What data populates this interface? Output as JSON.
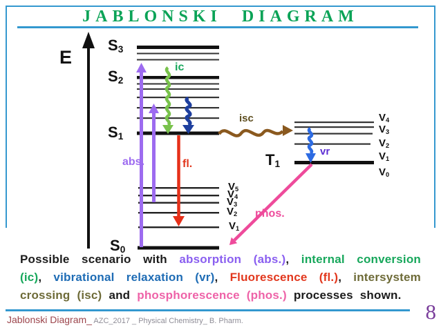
{
  "title": "JABLONSKI DIAGRAM",
  "colors": {
    "frame_blue": "#3398cf",
    "title_green": "#0ba357",
    "absorption_purple": "#9d6bf0",
    "ic_green_arrow": "#79c24c",
    "ic_green_label": "#17a75b",
    "vr_navy_arrow": "#1e3f9e",
    "vr_blue_arrow": "#2d6be2",
    "vr_label_violet": "#5e2fd4",
    "fluorescence_red": "#e63019",
    "isc_brown_arrow": "#8a591f",
    "isc_label_olive": "#5e4e20",
    "phosphorescence_pink": "#ee4b9b",
    "caption_blue": "#1e6cb5",
    "caption_olive": "#6e6b38",
    "footer_maroon": "#9c454c",
    "footer_gray": "#8e8c96",
    "page_number_purple": "#7a3e9b"
  },
  "diagram": {
    "energy_label": "E",
    "levels": {
      "s3": {
        "base": "S",
        "sub": "3"
      },
      "s2": {
        "base": "S",
        "sub": "2"
      },
      "s1": {
        "base": "S",
        "sub": "1"
      },
      "s0": {
        "base": "S",
        "sub": "0"
      },
      "t1": {
        "base": "T",
        "sub": "1"
      }
    },
    "vib_left": [
      {
        "base": "V",
        "sub": "5"
      },
      {
        "base": "V",
        "sub": "4"
      },
      {
        "base": "V",
        "sub": "3"
      },
      {
        "base": "V",
        "sub": "2"
      },
      {
        "base": "V",
        "sub": "1"
      }
    ],
    "vib_right": [
      {
        "base": "V",
        "sub": "4"
      },
      {
        "base": "V",
        "sub": "3"
      },
      {
        "base": "V",
        "sub": "2"
      },
      {
        "base": "V",
        "sub": "1"
      },
      {
        "base": "V",
        "sub": "0"
      }
    ],
    "arrow_labels": {
      "ic": "ic",
      "isc": "isc",
      "vr": "vr",
      "abs": "abs.",
      "fl": "fl.",
      "phos": "phos."
    }
  },
  "caption": {
    "lines": [
      {
        "justify": true,
        "tokens": [
          [
            {
              "t": "Possible",
              "c": "black"
            }
          ],
          [
            {
              "t": "scenario",
              "c": "black"
            }
          ],
          [
            {
              "t": "with",
              "c": "black"
            }
          ],
          [
            {
              "t": "absorption",
              "c": "purple"
            }
          ],
          [
            {
              "t": "(abs.)",
              "c": "purple"
            },
            {
              "t": ",",
              "c": "black"
            }
          ],
          [
            {
              "t": "internal",
              "c": "green"
            }
          ],
          [
            {
              "t": "conversion",
              "c": "green"
            }
          ]
        ]
      },
      {
        "justify": true,
        "tokens": [
          [
            {
              "t": "(ic)",
              "c": "green"
            },
            {
              "t": ",",
              "c": "black"
            }
          ],
          [
            {
              "t": "vibrational",
              "c": "blue"
            }
          ],
          [
            {
              "t": "relaxation",
              "c": "blue"
            }
          ],
          [
            {
              "t": "(vr)",
              "c": "blue"
            },
            {
              "t": ",",
              "c": "black"
            }
          ],
          [
            {
              "t": "Fluorescence",
              "c": "red"
            }
          ],
          [
            {
              "t": "(fl.)",
              "c": "red"
            },
            {
              "t": ",",
              "c": "black"
            }
          ],
          [
            {
              "t": "intersystem",
              "c": "olive"
            }
          ]
        ]
      },
      {
        "justify": false,
        "tokens": [
          [
            {
              "t": "crossing",
              "c": "olive"
            }
          ],
          [
            {
              "t": "(isc)",
              "c": "olive"
            }
          ],
          [
            {
              "t": "and",
              "c": "black"
            }
          ],
          [
            {
              "t": "phosphorescence",
              "c": "pink"
            }
          ],
          [
            {
              "t": "(phos.)",
              "c": "pink"
            }
          ],
          [
            {
              "t": "processes",
              "c": "black"
            }
          ],
          [
            {
              "t": "shown.",
              "c": "black"
            }
          ]
        ]
      }
    ]
  },
  "footer": {
    "left_primary": "Jablonski Diagram_",
    "left_secondary": " AZC_2017 _ Physical Chemistry_ B. Pharm.",
    "page": "8"
  }
}
